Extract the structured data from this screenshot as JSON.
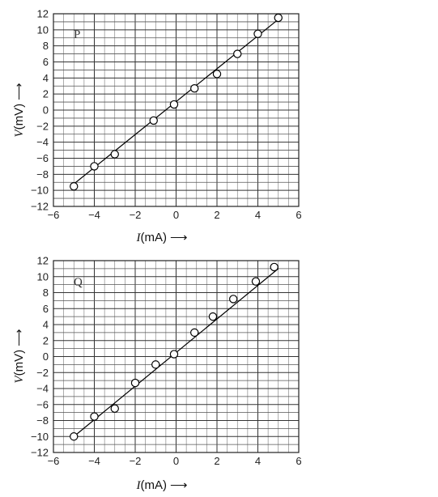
{
  "chart_data": [
    {
      "type": "scatter",
      "panel_label": "P",
      "x_var": "I",
      "x_unit": "(mA)",
      "y_var": "V",
      "y_unit": "(mV)",
      "arrow": "⟶",
      "xlim": [
        -6,
        6
      ],
      "ylim": [
        -12,
        12
      ],
      "x_ticks": [
        "−6",
        "−4",
        "−2",
        "0",
        "2",
        "4",
        "6"
      ],
      "y_ticks": [
        "12",
        "10",
        "8",
        "6",
        "4",
        "2",
        "0",
        "−2",
        "−4",
        "−6",
        "−8",
        "−10",
        "−12"
      ],
      "grid": true,
      "fit_line": {
        "x": [
          -5,
          5
        ],
        "y": [
          -9.2,
          11.3
        ]
      },
      "points": {
        "x": [
          -5,
          -4,
          -3,
          -1.1,
          -0.1,
          0.9,
          2,
          3,
          4,
          5
        ],
        "y": [
          -9.5,
          -7,
          -5.5,
          -1.3,
          0.7,
          2.7,
          4.5,
          7,
          9.5,
          11.5
        ]
      }
    },
    {
      "type": "scatter",
      "panel_label": "Q",
      "x_var": "I",
      "x_unit": "(mA)",
      "y_var": "V",
      "y_unit": "(mV)",
      "arrow": "⟶",
      "xlim": [
        -6,
        6
      ],
      "ylim": [
        -12,
        12
      ],
      "x_ticks": [
        "−6",
        "−4",
        "−2",
        "0",
        "2",
        "4",
        "6"
      ],
      "y_ticks": [
        "12",
        "10",
        "8",
        "6",
        "4",
        "2",
        "0",
        "−2",
        "−4",
        "−6",
        "−8",
        "−10",
        "−12"
      ],
      "grid": true,
      "fit_line": {
        "x": [
          -5,
          5
        ],
        "y": [
          -10,
          11
        ]
      },
      "points": {
        "x": [
          -5,
          -4,
          -3,
          -2,
          -1,
          -0.1,
          0.9,
          1.8,
          2.8,
          3.9,
          4.8
        ],
        "y": [
          -10,
          -7.5,
          -6.5,
          -3.3,
          -1,
          0.3,
          3,
          5,
          7.2,
          9.4,
          11.2
        ]
      }
    }
  ]
}
